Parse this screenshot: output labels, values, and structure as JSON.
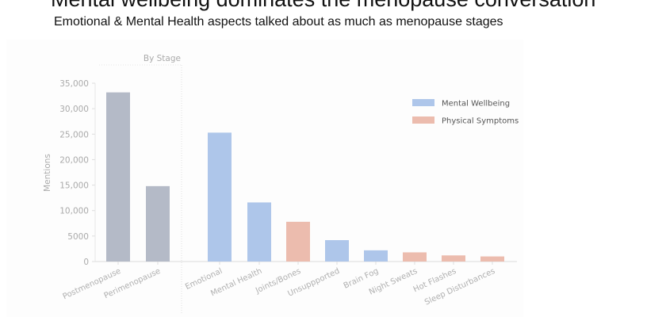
{
  "title": "Mental wellbeing dominates the menopause conversation",
  "subtitle": "Emotional & Mental Health aspects talked about as much as menopause stages",
  "chart_data": {
    "type": "bar",
    "ylabel": "Mentions",
    "ylim": [
      0,
      35000
    ],
    "yticks": [
      0,
      5000,
      10000,
      15000,
      20000,
      25000,
      30000,
      35000
    ],
    "ytick_labels": [
      "0",
      "5000",
      "10,000",
      "15,000",
      "20,000",
      "25,000",
      "30,000",
      "35,000"
    ],
    "group_label": "By Stage",
    "legend": {
      "position": "top-right",
      "entries": [
        {
          "name": "Mental Wellbeing",
          "color": "#aec6ea"
        },
        {
          "name": "Physical Symptoms",
          "color": "#ecbcae"
        }
      ]
    },
    "stage_color": "#b4bac7",
    "categories": [
      "Postmenopause",
      "Perimenopause",
      "Emotional",
      "Mental Health",
      "Joints/Bones",
      "Unsuppported",
      "Brain Fog",
      "Night Sweats",
      "Hot Flashes",
      "Sleep Disturbances"
    ],
    "values": [
      33200,
      14800,
      25300,
      11600,
      7800,
      4200,
      2200,
      1800,
      1200,
      1000
    ],
    "groups": [
      "stage",
      "stage",
      "Mental Wellbeing",
      "Mental Wellbeing",
      "Physical Symptoms",
      "Mental Wellbeing",
      "Mental Wellbeing",
      "Physical Symptoms",
      "Physical Symptoms",
      "Physical Symptoms"
    ]
  }
}
